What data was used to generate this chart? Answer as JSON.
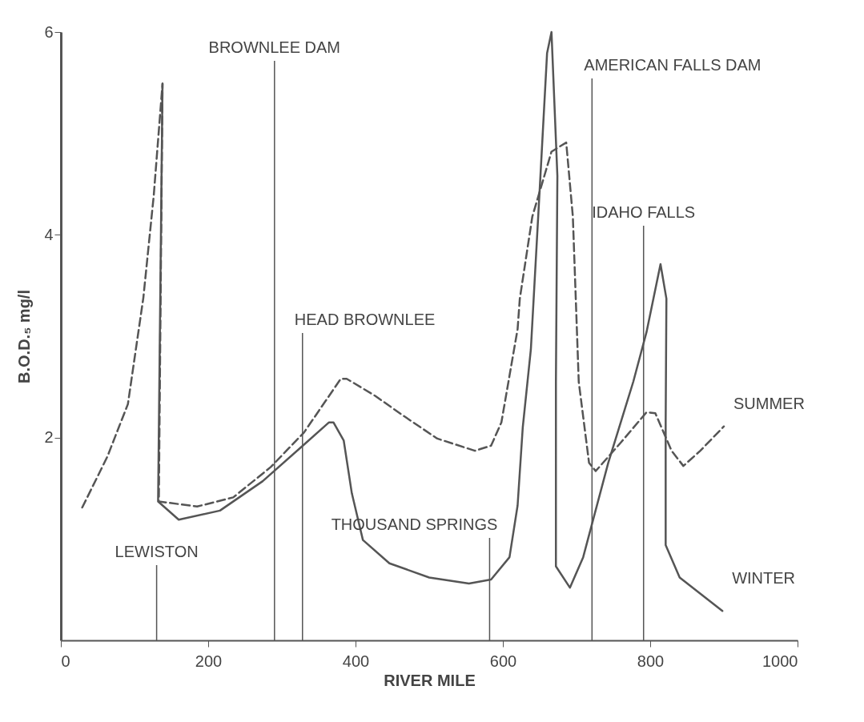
{
  "chart_data": {
    "type": "line",
    "xlabel": "RIVER MILE",
    "ylabel": "B.O.D.₅ mg/l",
    "xlim": [
      0,
      1000
    ],
    "xticks": [
      0,
      200,
      400,
      600,
      800,
      {
        "value": 1000,
        "label": "1000"
      }
    ],
    "ylim": [
      0,
      6
    ],
    "yticks": [
      2,
      4,
      6
    ],
    "grid": false,
    "marker": "none",
    "series": [
      {
        "name": "SUMMER",
        "color": "#555555",
        "line_style": "dashed",
        "x": [
          29,
          63,
          91,
          112,
          126,
          138,
          133,
          185,
          234,
          285,
          330,
          380,
          388,
          427,
          464,
          511,
          562,
          584,
          598,
          609,
          620,
          623,
          640,
          666,
          686,
          695,
          703,
          717,
          726,
          760,
          795,
          807,
          829,
          845,
          868,
          900
        ],
        "values": [
          1.31,
          1.81,
          2.33,
          3.38,
          4.38,
          5.49,
          1.37,
          1.32,
          1.41,
          1.71,
          2.05,
          2.58,
          2.58,
          2.41,
          2.22,
          1.99,
          1.87,
          1.92,
          2.15,
          2.61,
          3.07,
          3.37,
          4.18,
          4.82,
          4.91,
          4.18,
          2.55,
          1.75,
          1.67,
          1.95,
          2.25,
          2.24,
          1.87,
          1.72,
          1.87,
          2.11
        ]
      },
      {
        "name": "WINTER",
        "color": "#555555",
        "line_style": "solid",
        "x": [
          138,
          132,
          160,
          216,
          274,
          330,
          364,
          370,
          384,
          395,
          410,
          446,
          500,
          554,
          584,
          609,
          620,
          627,
          638,
          651,
          660,
          666,
          674,
          672,
          672,
          691,
          709,
          743,
          777,
          795,
          814,
          822,
          821,
          821,
          840,
          898
        ],
        "values": [
          5.49,
          1.37,
          1.19,
          1.28,
          1.57,
          1.93,
          2.15,
          2.15,
          1.97,
          1.45,
          0.99,
          0.76,
          0.62,
          0.56,
          0.6,
          0.82,
          1.33,
          2.1,
          2.87,
          4.58,
          5.79,
          6.0,
          4.58,
          2.55,
          0.73,
          0.52,
          0.82,
          1.75,
          2.55,
          3.04,
          3.71,
          3.37,
          2.15,
          0.94,
          0.62,
          0.29
        ]
      }
    ],
    "ref_lines": [
      {
        "axis": "x",
        "value": 130,
        "label": "LEWISTON"
      },
      {
        "axis": "x",
        "value": 290,
        "label": "BROWNLEE DAM"
      },
      {
        "axis": "x",
        "value": 328,
        "label": "HEAD BROWNLEE"
      },
      {
        "axis": "x",
        "value": 582,
        "label": "THOUSAND SPRINGS"
      },
      {
        "axis": "x",
        "value": 721,
        "label": "AMERICAN FALLS DAM"
      },
      {
        "axis": "x",
        "value": 791,
        "label": "IDAHO FALLS"
      }
    ]
  }
}
